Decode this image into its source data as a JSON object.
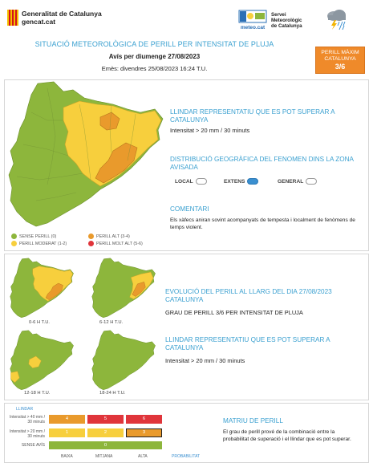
{
  "header": {
    "org_name_line1": "Generalitat de Catalunya",
    "org_name_line2": "gencat.cat",
    "meteo_logo_caption": "meteo.cat",
    "meteo_name_line1": "Servei",
    "meteo_name_line2": "Meteorològic",
    "meteo_name_line3": "de Catalunya",
    "title": "SITUACIÓ METEOROLÒGICA DE PERILL PER INTENSITAT DE PLUJA",
    "subtitle": "Avís per diumenge 27/08/2023",
    "issued": "Emès: divendres 25/08/2023 16:24 T.U.",
    "badge_line1": "PERILL MÀXIM",
    "badge_line2": "CATALUNYA",
    "badge_line3": "3/6",
    "rain_icon": "rain-cloud-lightning-icon"
  },
  "colors": {
    "accent": "#3aa0d0",
    "green": "#8db63c",
    "yellow": "#f7cf3d",
    "orange": "#e99a2c",
    "red": "#e0353b",
    "badge": "#ef8a2a"
  },
  "panel1": {
    "threshold_title": "LLINDAR REPRESENTATIU QUE ES POT SUPERAR A CATALUNYA",
    "threshold_text": "Intensitat > 20 mm / 30 minuts",
    "distribution_title": "DISTRIBUCIÓ GEOGRÀFICA DEL FENOMEN DINS LA ZONA AVISADA",
    "option_local": "LOCAL",
    "option_extens": "EXTENS",
    "option_general": "GENERAL",
    "selected_option": "EXTENS",
    "comments_title": "COMENTARI",
    "comments_text": "Els xàfecs aniran sovint acompanyats de tempesta i localment de fenòmens de temps violent.",
    "legend": [
      {
        "label": "SENSE PERILL (0)",
        "color": "#8db63c"
      },
      {
        "label": "PERILL MODERAT (1-2)",
        "color": "#f7cf3d"
      },
      {
        "label": "PERILL ALT (3-4)",
        "color": "#e99a2c"
      },
      {
        "label": "PERILL MOLT ALT (5-6)",
        "color": "#e0353b"
      }
    ]
  },
  "panel2": {
    "maps": [
      {
        "label": "0-6 H T.U."
      },
      {
        "label": "6-12 H T.U."
      },
      {
        "label": "12-18 H T.U."
      },
      {
        "label": "18-24 H T.U."
      }
    ],
    "evolution_title": "EVOLUCIÓ DEL PERILL AL LLARG DEL DIA 27/08/2023 CATALUNYA",
    "evolution_text": "GRAU DE PERILL 3/6 PER INTENSITAT DE PLUJA",
    "threshold_title": "LLINDAR REPRESENTATIU QUE ES POT SUPERAR A CATALUNYA",
    "threshold_text": "Intensitat > 20 mm / 30 minuts"
  },
  "panel3": {
    "matrix_title": "MATRIU DE PERILL",
    "matrix_text": "El grau de perill prové de la combinació entre la probabilitat de superació i el llindar que es pot superar.",
    "ylabel": "LLINDAR",
    "row_labels": [
      "Intensitat > 40 mm / 30 minuts",
      "Intensitat > 20 mm / 30 minuts",
      "SENSE AVÍS"
    ],
    "col_labels": [
      "BAIXA",
      "MITJANA",
      "ALTA"
    ],
    "xlabel": "PROBABILITAT",
    "row1_values": [
      "4",
      "5",
      "6"
    ],
    "row2_values": [
      "1",
      "2",
      "3"
    ],
    "row3_value": "0",
    "highlighted": "3"
  }
}
